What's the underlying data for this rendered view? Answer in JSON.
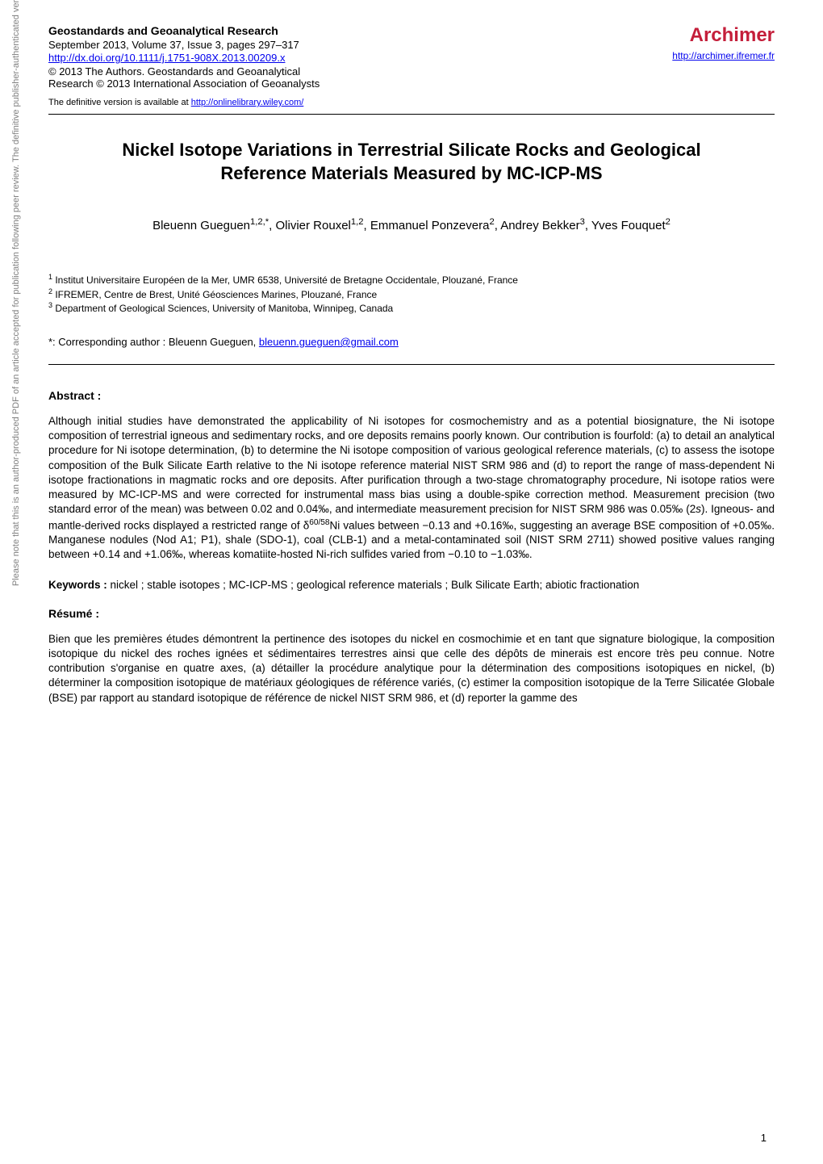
{
  "sidebar_note": "Please note that this is an author-produced PDF of an article accepted for publication following peer review. The definitive publisher-authenticated version is available on the publisher Web site",
  "journal": {
    "name": "Geostandards and Geoanalytical Research",
    "issue_line": "September 2013, Volume 37, Issue 3, pages 297–317",
    "doi_url": "http://dx.doi.org/10.1111/j.1751-908X.2013.00209.x",
    "copyright_line1": "© 2013 The Authors. Geostandards and Geoanalytical",
    "copyright_line2": "Research © 2013 International Association of Geoanalysts"
  },
  "archimer": {
    "name": "Archimer",
    "url": "http://archimer.ifremer.fr"
  },
  "definitive_version": {
    "prefix": "The definitive version is available at ",
    "url": "http://onlinelibrary.wiley.com/"
  },
  "title": "Nickel Isotope Variations in Terrestrial Silicate Rocks and Geological Reference Materials Measured by MC-ICP-MS",
  "authors_html": "Bleuenn Gueguen<sup>1,2,*</sup>, Olivier Rouxel<sup>1,2</sup>, Emmanuel Ponzevera<sup>2</sup>, Andrey Bekker<sup>3</sup>, Yves Fouquet<sup>2</sup>",
  "affiliations": [
    "<sup>1</sup> Institut Universitaire Européen de la Mer, UMR 6538, Université de Bretagne Occidentale, Plouzané, France",
    "<sup>2</sup> IFREMER, Centre de Brest, Unité Géosciences Marines, Plouzané, France",
    "<sup>3</sup> Department of Geological Sciences, University of Manitoba, Winnipeg, Canada"
  ],
  "corresponding": {
    "prefix": "*: Corresponding author : Bleuenn Gueguen, ",
    "email": "bleuenn.gueguen@gmail.com"
  },
  "abstract": {
    "heading": "Abstract :",
    "body_html": "Although initial studies have demonstrated the applicability of Ni isotopes for cosmochemistry and as a potential biosignature, the Ni isotope composition of terrestrial igneous and sedimentary rocks, and ore deposits remains poorly known. Our contribution is fourfold: (a) to detail an analytical procedure for Ni isotope determination, (b) to determine the Ni isotope composition of various geological reference materials, (c) to assess the isotope composition of the Bulk Silicate Earth relative to the Ni isotope reference material NIST SRM 986 and (d) to report the range of mass-dependent Ni isotope fractionations in magmatic rocks and ore deposits. After purification through a two-stage chromatography procedure, Ni isotope ratios were measured by MC-ICP-MS and were corrected for instrumental mass bias using a double-spike correction method. Measurement precision (two standard error of the mean) was between 0.02 and 0.04‰, and intermediate measurement precision for NIST SRM 986 was 0.05‰ (2<i>s</i>). Igneous- and mantle-derived rocks displayed a restricted range of δ<sup>60/58</sup>Ni values between −0.13 and +0.16‰, suggesting an average BSE composition of +0.05‰. Manganese nodules (Nod A1; P1), shale (SDO-1), coal (CLB-1) and a metal-contaminated soil (NIST SRM 2711) showed positive values ranging between +0.14 and +1.06‰, whereas komatiite-hosted Ni-rich sulfides varied from −0.10 to −1.03‰."
  },
  "keywords": {
    "label": "Keywords :",
    "text": " nickel ; stable isotopes ; MC-ICP-MS ; geological reference materials ; Bulk Silicate Earth; abiotic fractionation"
  },
  "resume": {
    "heading": "Résumé :",
    "body": "Bien que les premières études démontrent la pertinence des isotopes du nickel en cosmochimie et en tant que signature biologique, la composition isotopique du nickel des roches ignées et sédimentaires terrestres ainsi que celle des dépôts de minerais est encore très peu connue. Notre contribution s'organise en quatre axes, (a) détailler la procédure analytique pour la détermination des compositions isotopiques en nickel, (b) déterminer la composition isotopique de matériaux géologiques de référence variés, (c) estimer la composition isotopique de la Terre Silicatée Globale (BSE) par rapport au standard isotopique de référence de nickel NIST SRM 986, et (d) reporter la gamme des"
  },
  "page_number": "1",
  "colors": {
    "archimer_red": "#c41e3a",
    "link_blue": "#0000ee",
    "sidebar_gray": "#808080"
  }
}
